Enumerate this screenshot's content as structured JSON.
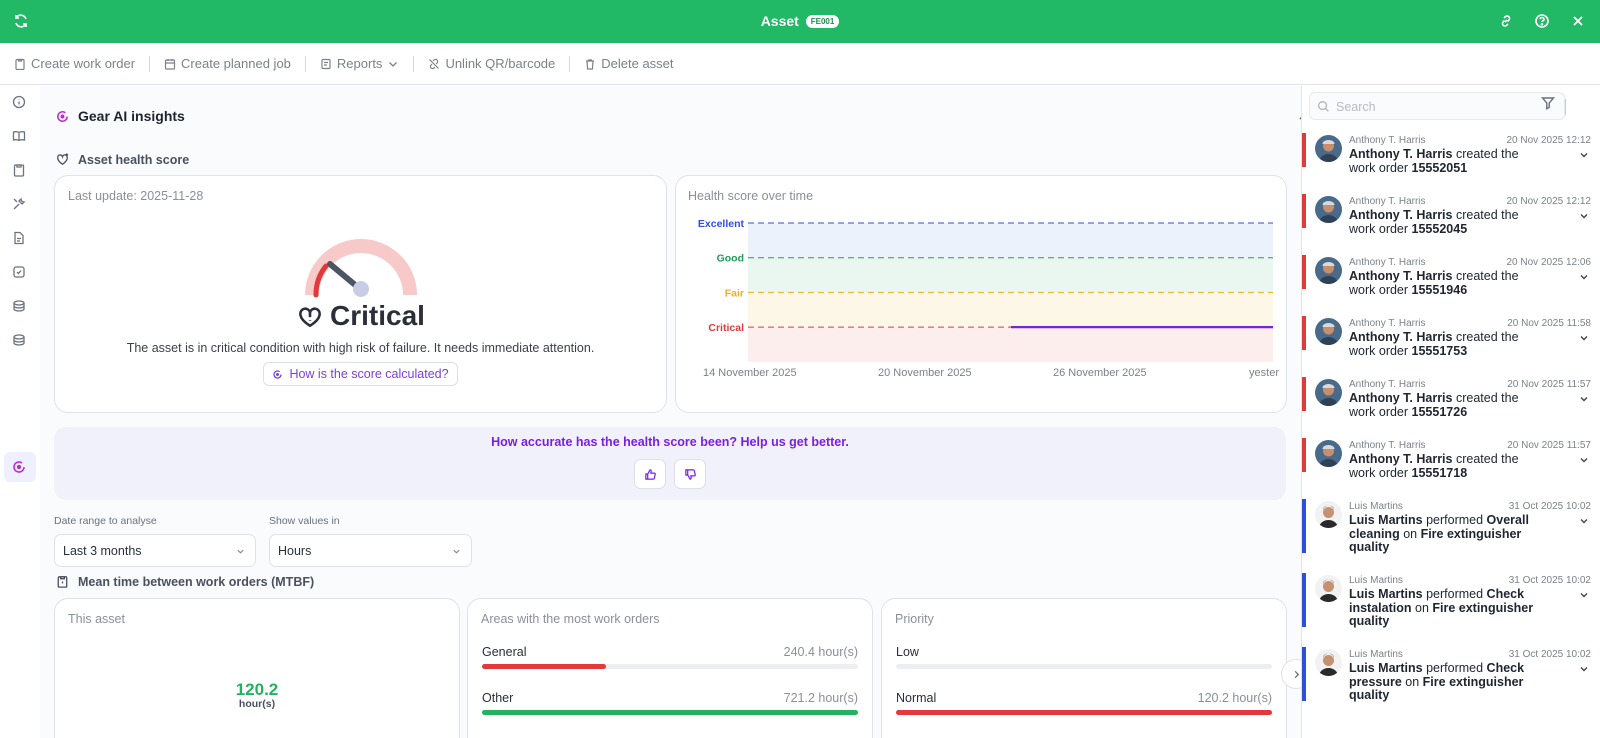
{
  "titlebar": {
    "title": "Asset",
    "badge": "FE001",
    "bg": "#22b966"
  },
  "toolbar": {
    "create_wo": "Create work order",
    "create_job": "Create planned job",
    "reports": "Reports",
    "unlink": "Unlink QR/barcode",
    "delete": "Delete asset"
  },
  "insights": {
    "title": "Gear AI insights",
    "health_title": "Asset health score",
    "last_update": "Last update: 2025-11-28",
    "status": "Critical",
    "status_desc": "The asset is in critical condition with high risk of failure. It needs immediate attention.",
    "how_btn": "How is the score calculated?",
    "chart_title": "Health score over time",
    "feedback_q": "How accurate has the health score been? Help us get better."
  },
  "chart_data": {
    "type": "line",
    "title": "Health score over time",
    "levels": [
      "Excellent",
      "Good",
      "Fair",
      "Critical"
    ],
    "level_colors": [
      "#2d4fe0",
      "#1ea05a",
      "#f2b01e",
      "#e23a3a"
    ],
    "x_ticks": [
      "14 November 2025",
      "20 November 2025",
      "26 November 2025",
      "yester"
    ],
    "series": [
      {
        "name": "Health score",
        "x_start": "24 November 2025",
        "x_end": "yesterday",
        "level": "Critical",
        "color": "#7a1fe0"
      }
    ]
  },
  "filters": {
    "date_label": "Date range to analyse",
    "date_value": "Last 3 months",
    "values_label": "Show values in",
    "values_value": "Hours"
  },
  "mtbf": {
    "title": "Mean time between work orders (MTBF)",
    "this_asset": {
      "label": "This asset",
      "value": "120.2",
      "unit": "hour(s)"
    },
    "areas": {
      "label": "Areas with the most work orders",
      "rows": [
        {
          "name": "General",
          "value": "240.4 hour(s)",
          "fill": 0.33,
          "color": "#e23a3a"
        },
        {
          "name": "Other",
          "value": "721.2 hour(s)",
          "fill": 1.0,
          "color": "#22b35e"
        }
      ]
    },
    "priority": {
      "label": "Priority",
      "rows": [
        {
          "name": "Low",
          "value": "",
          "fill": 0,
          "color": "#e23a3a"
        },
        {
          "name": "Normal",
          "value": "120.2 hour(s)",
          "fill": 1.0,
          "color": "#e23a3a"
        }
      ]
    }
  },
  "sidebar": {
    "search_placeholder": "Search",
    "activities": [
      {
        "user": "Anthony T. Harris",
        "time": "20 Nov 2025 12:12",
        "actor": "Anthony T. Harris",
        "verb": " created the work order ",
        "object": "15552051",
        "tail": "",
        "place": "",
        "color": "#e23a3a"
      },
      {
        "user": "Anthony T. Harris",
        "time": "20 Nov 2025 12:12",
        "actor": "Anthony T. Harris",
        "verb": " created the work order ",
        "object": "15552045",
        "tail": "",
        "place": "",
        "color": "#e23a3a"
      },
      {
        "user": "Anthony T. Harris",
        "time": "20 Nov 2025 12:06",
        "actor": "Anthony T. Harris",
        "verb": " created the work order ",
        "object": "15551946",
        "tail": "",
        "place": "",
        "color": "#e23a3a"
      },
      {
        "user": "Anthony T. Harris",
        "time": "20 Nov 2025 11:58",
        "actor": "Anthony T. Harris",
        "verb": " created the work order ",
        "object": "15551753",
        "tail": "",
        "place": "",
        "color": "#e23a3a"
      },
      {
        "user": "Anthony T. Harris",
        "time": "20 Nov 2025 11:57",
        "actor": "Anthony T. Harris",
        "verb": " created the work order ",
        "object": "15551726",
        "tail": "",
        "place": "",
        "color": "#e23a3a"
      },
      {
        "user": "Anthony T. Harris",
        "time": "20 Nov 2025 11:57",
        "actor": "Anthony T. Harris",
        "verb": " created the work order ",
        "object": "15551718",
        "tail": "",
        "place": "",
        "color": "#e23a3a"
      },
      {
        "user": "Luis Martins",
        "time": "31 Oct 2025 10:02",
        "actor": "Luis Martins",
        "verb": " performed ",
        "object": "Overall cleaning",
        "tail": " on ",
        "place": "Fire extinguisher quality",
        "color": "#2d4fe0"
      },
      {
        "user": "Luis Martins",
        "time": "31 Oct 2025 10:02",
        "actor": "Luis Martins",
        "verb": " performed ",
        "object": "Check instalation",
        "tail": " on ",
        "place": "Fire extinguisher quality",
        "color": "#2d4fe0"
      },
      {
        "user": "Luis Martins",
        "time": "31 Oct 2025 10:02",
        "actor": "Luis Martins",
        "verb": " performed ",
        "object": "Check pressure",
        "tail": " on ",
        "place": "Fire extinguisher quality",
        "color": "#2d4fe0"
      }
    ]
  }
}
